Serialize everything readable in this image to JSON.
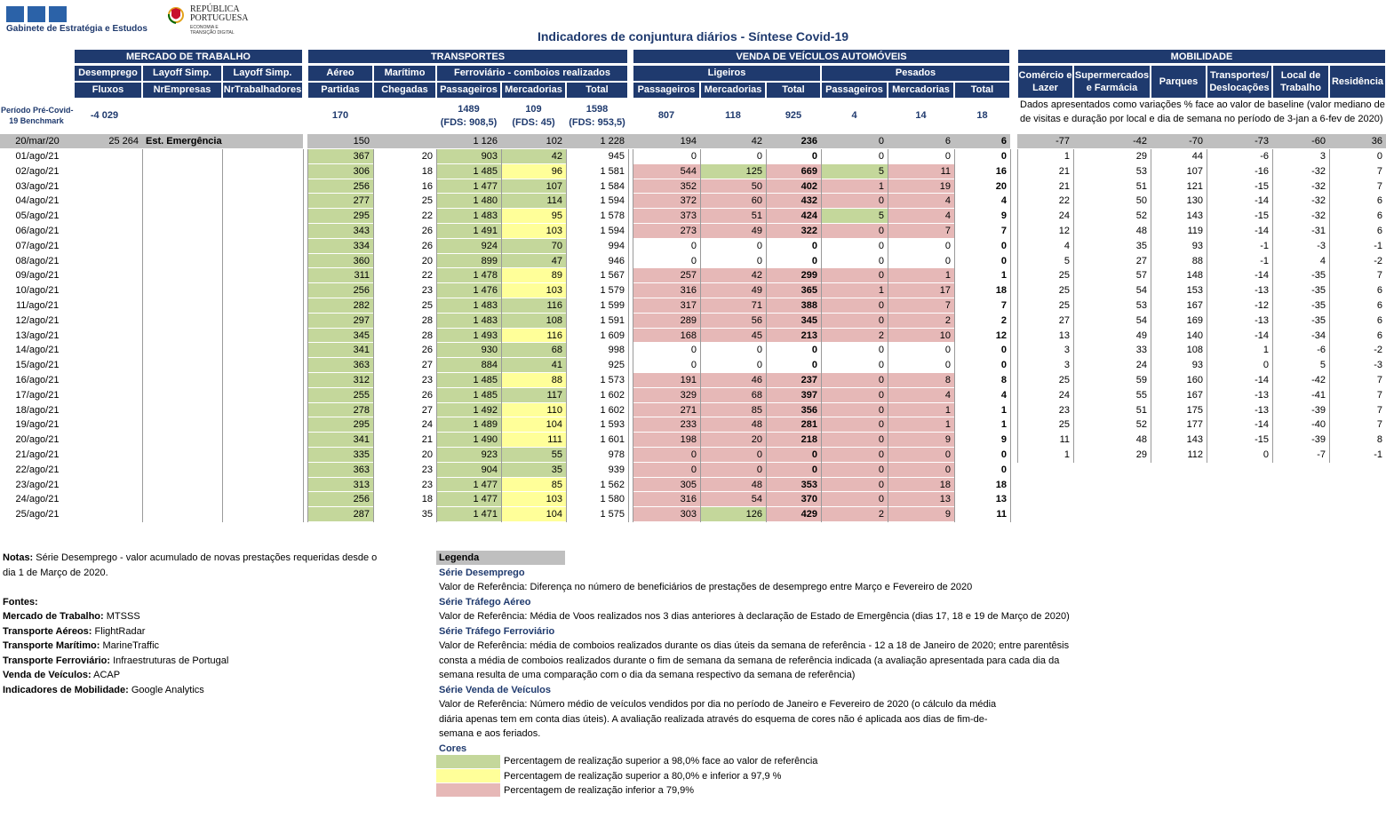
{
  "header": {
    "org_name": "Gabinete de Estratégia e Estudos",
    "gov_line1": "REPÚBLICA",
    "gov_line2": "PORTUGUESA",
    "gov_sub1": "ECONOMIA E",
    "gov_sub2": "TRANSIÇÃO DIGITAL",
    "title": "Indicadores de conjuntura diários - Síntese Covid-19"
  },
  "groups": {
    "mercado": "MERCADO DE TRABALHO",
    "transportes": "TRANSPORTES",
    "venda": "VENDA DE VEÍCULOS AUTOMÓVEIS",
    "mobilidade": "MOBILIDADE"
  },
  "subheaders": {
    "desemprego": "Desemprego",
    "layoff1": "Layoff Simp.",
    "layoff2": "Layoff Simp.",
    "aereo": "Aéreo",
    "maritimo": "Marítimo",
    "ferroviario": "Ferroviário - comboios realizados",
    "ligeiros": "Ligeiros",
    "pesados": "Pesados",
    "comercio": "Comércio e Lazer",
    "supermercados": "Supermercados e Farmácia",
    "parques": "Parques",
    "transportes_desl": "Transportes/ Deslocações",
    "local_trabalho": "Local de Trabalho",
    "residencia": "Residência"
  },
  "columns": [
    "Fluxos",
    "NrEmpresas",
    "NrTrabalhadores",
    "Partidas",
    "Chegadas",
    "Passageiros",
    "Mercadorias",
    "Total",
    "Passageiros",
    "Mercadorias",
    "Total",
    "Passageiros",
    "Mercadorias",
    "Total"
  ],
  "benchmark": {
    "label1": "Período Pré-Covid-",
    "label2": "19 Benchmark",
    "fluxos": "-4 029",
    "aereo": "170",
    "ferr_pass": "1489",
    "ferr_pass_fds": "(FDS: 908,5)",
    "ferr_merc": "109",
    "ferr_merc_fds": "(FDS: 45)",
    "ferr_total": "1598",
    "ferr_total_fds": "(FDS: 953,5)",
    "lig_pass": "807",
    "lig_merc": "118",
    "lig_total": "925",
    "pes_pass": "4",
    "pes_merc": "14",
    "pes_total": "18",
    "mob_note1": "Dados apresentados como variações % face ao valor de baseline (valor mediano de nr.",
    "mob_note2": "de visitas e duração por local e dia de semana no período de 3-jan a 6-fev de 2020)"
  },
  "emergency": {
    "date": "20/mar/20",
    "fluxos": "25 264",
    "label": "Est. Emergência",
    "values": [
      "150",
      "",
      "1 126",
      "102",
      "1 228",
      "194",
      "42",
      "236",
      "0",
      "6",
      "6"
    ],
    "mob": [
      "-77",
      "-42",
      "-70",
      "-73",
      "-60",
      "36"
    ]
  },
  "rows": [
    {
      "d": "01/ago/21",
      "v": [
        "367",
        "20",
        "903",
        "42",
        "945",
        "0",
        "0",
        "0",
        "0",
        "0",
        "0"
      ],
      "c": [
        "g",
        "",
        "g",
        "g",
        "",
        "",
        "",
        "",
        "",
        "",
        ""
      ],
      "m": [
        "1",
        "29",
        "44",
        "-6",
        "3",
        "0"
      ]
    },
    {
      "d": "02/ago/21",
      "v": [
        "306",
        "18",
        "1 485",
        "96",
        "1 581",
        "544",
        "125",
        "669",
        "5",
        "11",
        "16"
      ],
      "c": [
        "g",
        "",
        "g",
        "y",
        "",
        "r",
        "g",
        "r",
        "g",
        "r",
        ""
      ],
      "m": [
        "21",
        "53",
        "107",
        "-16",
        "-32",
        "7"
      ]
    },
    {
      "d": "03/ago/21",
      "v": [
        "256",
        "16",
        "1 477",
        "107",
        "1 584",
        "352",
        "50",
        "402",
        "1",
        "19",
        "20"
      ],
      "c": [
        "g",
        "",
        "g",
        "g",
        "",
        "r",
        "r",
        "r",
        "r",
        "r",
        ""
      ],
      "m": [
        "21",
        "51",
        "121",
        "-15",
        "-32",
        "7"
      ]
    },
    {
      "d": "04/ago/21",
      "v": [
        "277",
        "25",
        "1 480",
        "114",
        "1 594",
        "372",
        "60",
        "432",
        "0",
        "4",
        "4"
      ],
      "c": [
        "g",
        "",
        "g",
        "g",
        "",
        "r",
        "r",
        "r",
        "r",
        "r",
        ""
      ],
      "m": [
        "22",
        "50",
        "130",
        "-14",
        "-32",
        "6"
      ]
    },
    {
      "d": "05/ago/21",
      "v": [
        "295",
        "22",
        "1 483",
        "95",
        "1 578",
        "373",
        "51",
        "424",
        "5",
        "4",
        "9"
      ],
      "c": [
        "g",
        "",
        "g",
        "y",
        "",
        "r",
        "r",
        "r",
        "g",
        "r",
        ""
      ],
      "m": [
        "24",
        "52",
        "143",
        "-15",
        "-32",
        "6"
      ]
    },
    {
      "d": "06/ago/21",
      "v": [
        "343",
        "26",
        "1 491",
        "103",
        "1 594",
        "273",
        "49",
        "322",
        "0",
        "7",
        "7"
      ],
      "c": [
        "g",
        "",
        "g",
        "y",
        "",
        "r",
        "r",
        "r",
        "r",
        "r",
        ""
      ],
      "m": [
        "12",
        "48",
        "119",
        "-14",
        "-31",
        "6"
      ]
    },
    {
      "d": "07/ago/21",
      "v": [
        "334",
        "26",
        "924",
        "70",
        "994",
        "0",
        "0",
        "0",
        "0",
        "0",
        "0"
      ],
      "c": [
        "g",
        "",
        "g",
        "g",
        "",
        "",
        "",
        "",
        "",
        "",
        ""
      ],
      "m": [
        "4",
        "35",
        "93",
        "-1",
        "-3",
        "-1"
      ]
    },
    {
      "d": "08/ago/21",
      "v": [
        "360",
        "20",
        "899",
        "47",
        "946",
        "0",
        "0",
        "0",
        "0",
        "0",
        "0"
      ],
      "c": [
        "g",
        "",
        "g",
        "g",
        "",
        "",
        "",
        "",
        "",
        "",
        ""
      ],
      "m": [
        "5",
        "27",
        "88",
        "-1",
        "4",
        "-2"
      ]
    },
    {
      "d": "09/ago/21",
      "v": [
        "311",
        "22",
        "1 478",
        "89",
        "1 567",
        "257",
        "42",
        "299",
        "0",
        "1",
        "1"
      ],
      "c": [
        "g",
        "",
        "g",
        "y",
        "",
        "r",
        "r",
        "r",
        "r",
        "r",
        ""
      ],
      "m": [
        "25",
        "57",
        "148",
        "-14",
        "-35",
        "7"
      ]
    },
    {
      "d": "10/ago/21",
      "v": [
        "256",
        "23",
        "1 476",
        "103",
        "1 579",
        "316",
        "49",
        "365",
        "1",
        "17",
        "18"
      ],
      "c": [
        "g",
        "",
        "g",
        "y",
        "",
        "r",
        "r",
        "r",
        "r",
        "r",
        ""
      ],
      "m": [
        "25",
        "54",
        "153",
        "-13",
        "-35",
        "6"
      ]
    },
    {
      "d": "11/ago/21",
      "v": [
        "282",
        "25",
        "1 483",
        "116",
        "1 599",
        "317",
        "71",
        "388",
        "0",
        "7",
        "7"
      ],
      "c": [
        "g",
        "",
        "g",
        "g",
        "",
        "r",
        "r",
        "r",
        "r",
        "r",
        ""
      ],
      "m": [
        "25",
        "53",
        "167",
        "-12",
        "-35",
        "6"
      ]
    },
    {
      "d": "12/ago/21",
      "v": [
        "297",
        "28",
        "1 483",
        "108",
        "1 591",
        "289",
        "56",
        "345",
        "0",
        "2",
        "2"
      ],
      "c": [
        "g",
        "",
        "g",
        "g",
        "",
        "r",
        "r",
        "r",
        "r",
        "r",
        ""
      ],
      "m": [
        "27",
        "54",
        "169",
        "-13",
        "-35",
        "6"
      ]
    },
    {
      "d": "13/ago/21",
      "v": [
        "345",
        "28",
        "1 493",
        "116",
        "1 609",
        "168",
        "45",
        "213",
        "2",
        "10",
        "12"
      ],
      "c": [
        "g",
        "",
        "g",
        "y",
        "",
        "r",
        "r",
        "r",
        "r",
        "r",
        ""
      ],
      "m": [
        "13",
        "49",
        "140",
        "-14",
        "-34",
        "6"
      ]
    },
    {
      "d": "14/ago/21",
      "v": [
        "341",
        "26",
        "930",
        "68",
        "998",
        "0",
        "0",
        "0",
        "0",
        "0",
        "0"
      ],
      "c": [
        "g",
        "",
        "g",
        "g",
        "",
        "",
        "",
        "",
        "",
        "",
        ""
      ],
      "m": [
        "3",
        "33",
        "108",
        "1",
        "-6",
        "-2"
      ]
    },
    {
      "d": "15/ago/21",
      "v": [
        "363",
        "27",
        "884",
        "41",
        "925",
        "0",
        "0",
        "0",
        "0",
        "0",
        "0"
      ],
      "c": [
        "g",
        "",
        "g",
        "g",
        "",
        "",
        "",
        "",
        "",
        "",
        ""
      ],
      "m": [
        "3",
        "24",
        "93",
        "0",
        "5",
        "-3"
      ]
    },
    {
      "d": "16/ago/21",
      "v": [
        "312",
        "23",
        "1 485",
        "88",
        "1 573",
        "191",
        "46",
        "237",
        "0",
        "8",
        "8"
      ],
      "c": [
        "g",
        "",
        "g",
        "y",
        "",
        "r",
        "r",
        "r",
        "r",
        "r",
        ""
      ],
      "m": [
        "25",
        "59",
        "160",
        "-14",
        "-42",
        "7"
      ]
    },
    {
      "d": "17/ago/21",
      "v": [
        "255",
        "26",
        "1 485",
        "117",
        "1 602",
        "329",
        "68",
        "397",
        "0",
        "4",
        "4"
      ],
      "c": [
        "g",
        "",
        "g",
        "g",
        "",
        "r",
        "r",
        "r",
        "r",
        "r",
        ""
      ],
      "m": [
        "24",
        "55",
        "167",
        "-13",
        "-41",
        "7"
      ]
    },
    {
      "d": "18/ago/21",
      "v": [
        "278",
        "27",
        "1 492",
        "110",
        "1 602",
        "271",
        "85",
        "356",
        "0",
        "1",
        "1"
      ],
      "c": [
        "g",
        "",
        "g",
        "y",
        "",
        "r",
        "r",
        "r",
        "r",
        "r",
        ""
      ],
      "m": [
        "23",
        "51",
        "175",
        "-13",
        "-39",
        "7"
      ]
    },
    {
      "d": "19/ago/21",
      "v": [
        "295",
        "24",
        "1 489",
        "104",
        "1 593",
        "233",
        "48",
        "281",
        "0",
        "1",
        "1"
      ],
      "c": [
        "g",
        "",
        "g",
        "y",
        "",
        "r",
        "r",
        "r",
        "r",
        "r",
        ""
      ],
      "m": [
        "25",
        "52",
        "177",
        "-14",
        "-40",
        "7"
      ]
    },
    {
      "d": "20/ago/21",
      "v": [
        "341",
        "21",
        "1 490",
        "111",
        "1 601",
        "198",
        "20",
        "218",
        "0",
        "9",
        "9"
      ],
      "c": [
        "g",
        "",
        "g",
        "y",
        "",
        "r",
        "r",
        "r",
        "r",
        "r",
        ""
      ],
      "m": [
        "11",
        "48",
        "143",
        "-15",
        "-39",
        "8"
      ]
    },
    {
      "d": "21/ago/21",
      "v": [
        "335",
        "20",
        "923",
        "55",
        "978",
        "0",
        "0",
        "0",
        "0",
        "0",
        "0"
      ],
      "c": [
        "g",
        "",
        "g",
        "g",
        "",
        "r",
        "r",
        "r",
        "r",
        "r",
        ""
      ],
      "m": [
        "1",
        "29",
        "112",
        "0",
        "-7",
        "-1"
      ]
    },
    {
      "d": "22/ago/21",
      "v": [
        "363",
        "23",
        "904",
        "35",
        "939",
        "0",
        "0",
        "0",
        "0",
        "0",
        "0"
      ],
      "c": [
        "g",
        "",
        "g",
        "g",
        "",
        "r",
        "r",
        "r",
        "r",
        "r",
        ""
      ],
      "m": []
    },
    {
      "d": "23/ago/21",
      "v": [
        "313",
        "23",
        "1 477",
        "85",
        "1 562",
        "305",
        "48",
        "353",
        "0",
        "18",
        "18"
      ],
      "c": [
        "g",
        "",
        "g",
        "y",
        "",
        "r",
        "r",
        "r",
        "r",
        "r",
        ""
      ],
      "m": []
    },
    {
      "d": "24/ago/21",
      "v": [
        "256",
        "18",
        "1 477",
        "103",
        "1 580",
        "316",
        "54",
        "370",
        "0",
        "13",
        "13"
      ],
      "c": [
        "g",
        "",
        "g",
        "y",
        "",
        "r",
        "r",
        "r",
        "r",
        "r",
        ""
      ],
      "m": []
    },
    {
      "d": "25/ago/21",
      "v": [
        "287",
        "35",
        "1 471",
        "104",
        "1 575",
        "303",
        "126",
        "429",
        "2",
        "9",
        "11"
      ],
      "c": [
        "g",
        "",
        "g",
        "y",
        "",
        "r",
        "g",
        "r",
        "r",
        "r",
        ""
      ],
      "m": []
    }
  ],
  "notes": {
    "notas_label": "Notas:",
    "notas_text1": " Série Desemprego - valor acumulado de novas prestações requeridas desde o",
    "notas_text2": "dia 1 de Março de 2020.",
    "fontes_label": "Fontes:",
    "sources": [
      {
        "k": "Mercado de Trabalho:",
        "v": " MTSSS"
      },
      {
        "k": "Transporte Aéreos:",
        "v": " FlightRadar"
      },
      {
        "k": "Transporte Marítimo:",
        "v": " MarineTraffic"
      },
      {
        "k": "Transporte Ferroviário:",
        "v": " Infraestruturas de Portugal"
      },
      {
        "k": "Venda de Veículos:",
        "v": " ACAP"
      },
      {
        "k": "Indicadores de Mobilidade:",
        "v": " Google Analytics"
      }
    ]
  },
  "legend": {
    "title": "Legenda",
    "s1": "Série Desemprego",
    "s1_t1": "Valor de Referência: Diferença no número de beneficiários de prestações de desemprego entre Março e Fevereiro de 2020",
    "s2": "Série Tráfego Aéreo",
    "s2_t1": "Valor de Referência: Média de Voos realizados nos 3 dias anteriores à declaração de Estado de Emergência (dias 17, 18 e 19 de Março de 2020)",
    "s3": "Série Tráfego Ferroviário",
    "s3_t1": "Valor de Referência: média de comboios realizados durante os dias úteis da semana de referência - 12 a 18 de Janeiro de 2020; entre parentêsis",
    "s3_t2": "consta a média de comboios realizados durante o fim de semana da semana de referência indicada (a avaliação apresentada para cada dia da",
    "s3_t3": "semana resulta de uma comparação com o dia da semana respectivo da semana de referência)",
    "s4": "Série Venda de Veículos",
    "s4_t1": "Valor de Referência: Número médio de veículos vendidos por dia no período de Janeiro e Fevereiro de 2020 (o cálculo da média",
    "s4_t2": "diária apenas tem em conta dias úteis). A avaliação realizada através do esquema de cores não é aplicada aos dias de fim-de-",
    "s4_t3": "semana e aos feriados.",
    "cores": "Cores",
    "c_green": "Percentagem de realização superior a 98,0% face ao valor de referência",
    "c_yellow": "Percentagem de realização superior a 80,0% e inferior a 97,9 %",
    "c_red": "Percentagem de realização inferior a 79,9%",
    "colors": {
      "green": "#c4d79b",
      "yellow": "#ffff99",
      "red": "#e6b8b7",
      "navy": "#1f3a6e"
    }
  }
}
